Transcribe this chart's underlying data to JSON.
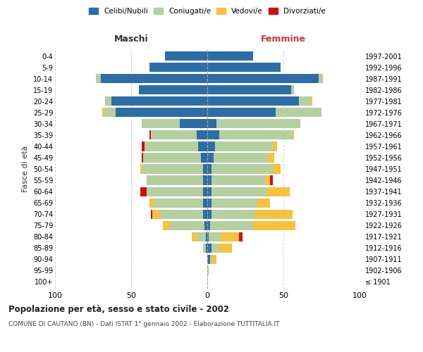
{
  "age_groups": [
    "100+",
    "95-99",
    "90-94",
    "85-89",
    "80-84",
    "75-79",
    "70-74",
    "65-69",
    "60-64",
    "55-59",
    "50-54",
    "45-49",
    "40-44",
    "35-39",
    "30-34",
    "25-29",
    "20-24",
    "15-19",
    "10-14",
    "5-9",
    "0-4"
  ],
  "birth_years": [
    "≤ 1901",
    "1902-1906",
    "1907-1911",
    "1912-1916",
    "1917-1921",
    "1922-1926",
    "1927-1931",
    "1932-1936",
    "1937-1941",
    "1942-1946",
    "1947-1951",
    "1952-1956",
    "1957-1961",
    "1962-1966",
    "1967-1971",
    "1972-1976",
    "1977-1981",
    "1982-1986",
    "1987-1991",
    "1992-1996",
    "1997-2001"
  ],
  "maschi": {
    "celibi": [
      0,
      0,
      0,
      1,
      1,
      2,
      3,
      3,
      3,
      3,
      3,
      4,
      6,
      7,
      18,
      60,
      63,
      45,
      70,
      38,
      28
    ],
    "coniugati": [
      0,
      0,
      0,
      2,
      6,
      22,
      28,
      32,
      37,
      37,
      40,
      38,
      35,
      30,
      25,
      8,
      4,
      0,
      3,
      0,
      0
    ],
    "vedovi": [
      0,
      0,
      0,
      0,
      3,
      5,
      5,
      3,
      0,
      0,
      1,
      0,
      0,
      0,
      0,
      1,
      0,
      0,
      0,
      0,
      0
    ],
    "divorziati": [
      0,
      0,
      0,
      0,
      0,
      0,
      1,
      0,
      4,
      0,
      0,
      1,
      2,
      1,
      0,
      0,
      0,
      0,
      0,
      0,
      0
    ]
  },
  "femmine": {
    "nubili": [
      0,
      0,
      2,
      3,
      1,
      2,
      3,
      3,
      3,
      3,
      3,
      4,
      5,
      8,
      6,
      45,
      60,
      55,
      73,
      48,
      30
    ],
    "coniugate": [
      0,
      0,
      1,
      5,
      8,
      28,
      28,
      30,
      36,
      35,
      40,
      36,
      38,
      48,
      55,
      30,
      8,
      2,
      3,
      0,
      0
    ],
    "vedove": [
      0,
      1,
      3,
      8,
      12,
      28,
      25,
      8,
      15,
      3,
      5,
      4,
      3,
      1,
      0,
      0,
      1,
      0,
      0,
      0,
      0
    ],
    "divorziate": [
      0,
      0,
      0,
      0,
      2,
      0,
      0,
      0,
      0,
      2,
      0,
      0,
      0,
      0,
      0,
      0,
      0,
      0,
      0,
      0,
      0
    ]
  },
  "colors": {
    "celibi_nubili": "#2e6da4",
    "coniugati": "#b5cfa1",
    "vedovi": "#f5c242",
    "divorziati": "#cc1111"
  },
  "title": "Popolazione per età, sesso e stato civile - 2002",
  "subtitle": "COMUNE DI CAUTANO (BN) - Dati ISTAT 1° gennaio 2002 - Elaborazione TUTTITALIA.IT",
  "xlabel_maschi": "Maschi",
  "xlabel_femmine": "Femmine",
  "ylabel_left": "Fasce di età",
  "xlim": 100,
  "legend_labels": [
    "Celibi/Nubili",
    "Coniugati/e",
    "Vedovi/e",
    "Divorziati/e"
  ],
  "background_color": "#ffffff",
  "grid_color": "#cccccc"
}
